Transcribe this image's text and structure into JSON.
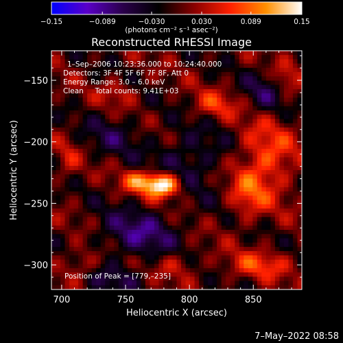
{
  "colorbar": {
    "tick_labels": [
      "−0.15",
      "−0.089",
      "−0.030",
      "0.030",
      "0.089",
      "0.15"
    ],
    "ticks": [
      -0.15,
      -0.089,
      -0.03,
      0.03,
      0.089,
      0.15
    ],
    "range": [
      -0.15,
      0.15
    ],
    "units_label": "(photons cm⁻² s⁻¹ asec⁻²)",
    "colors": [
      "#0000ff",
      "#5a00c8",
      "#2a004a",
      "#000000",
      "#8a0000",
      "#ff2000",
      "#ff9000",
      "#ffffff"
    ]
  },
  "title": "Reconstructed RHESSI Image",
  "info": {
    "time": "1–Sep–2006 10:23:36.000 to 10:24:40.000",
    "detectors": "Detectors: 3F 4F 5F 6F 7F 8F, Att 0",
    "energy": "Energy Range: 3.0 – 6.0 keV",
    "clean": "Clean     Total counts: 9.41E+03"
  },
  "peak_text": "Position of Peak = [779,–235]",
  "timestamp": "7–May–2022 08:58",
  "chart_data": {
    "type": "heatmap",
    "title": "Reconstructed RHESSI Image",
    "xlabel": "Heliocentric X (arcsec)",
    "ylabel": "Heliocentric Y (arcsec)",
    "xlim": [
      692,
      888
    ],
    "ylim": [
      -320,
      -126
    ],
    "x_ticks": [
      700,
      750,
      800,
      850
    ],
    "y_ticks": [
      -300,
      -250,
      -200,
      -150
    ],
    "x_tick_labels": [
      "700",
      "750",
      "800",
      "850"
    ],
    "y_tick_labels": [
      "−300",
      "−250",
      "−200",
      "−150"
    ],
    "peak": {
      "x": 779,
      "y": -235
    },
    "blobs": [
      {
        "x": 779,
        "y": -235,
        "amp": 0.17,
        "sx": 10,
        "sy": 7
      },
      {
        "x": 760,
        "y": -232,
        "amp": 0.08,
        "sx": 9,
        "sy": 6
      },
      {
        "x": 860,
        "y": -215,
        "amp": 0.075,
        "sx": 16,
        "sy": 22
      },
      {
        "x": 845,
        "y": -245,
        "amp": 0.05,
        "sx": 10,
        "sy": 14
      },
      {
        "x": 855,
        "y": -300,
        "amp": 0.06,
        "sx": 18,
        "sy": 8
      },
      {
        "x": 820,
        "y": -170,
        "amp": 0.055,
        "sx": 12,
        "sy": 8
      },
      {
        "x": 745,
        "y": -160,
        "amp": 0.04,
        "sx": 10,
        "sy": 7
      },
      {
        "x": 715,
        "y": -300,
        "amp": 0.045,
        "sx": 10,
        "sy": 10
      },
      {
        "x": 790,
        "y": -300,
        "amp": 0.04,
        "sx": 12,
        "sy": 8
      },
      {
        "x": 875,
        "y": -150,
        "amp": 0.045,
        "sx": 7,
        "sy": 10
      },
      {
        "x": 705,
        "y": -215,
        "amp": 0.035,
        "sx": 6,
        "sy": 12
      },
      {
        "x": 760,
        "y": -275,
        "amp": -0.07,
        "sx": 22,
        "sy": 14
      },
      {
        "x": 800,
        "y": -215,
        "amp": -0.05,
        "sx": 20,
        "sy": 18
      },
      {
        "x": 740,
        "y": -195,
        "amp": -0.04,
        "sx": 16,
        "sy": 12
      },
      {
        "x": 860,
        "y": -160,
        "amp": -0.05,
        "sx": 12,
        "sy": 12
      },
      {
        "x": 740,
        "y": -312,
        "amp": -0.04,
        "sx": 18,
        "sy": 8
      }
    ]
  }
}
